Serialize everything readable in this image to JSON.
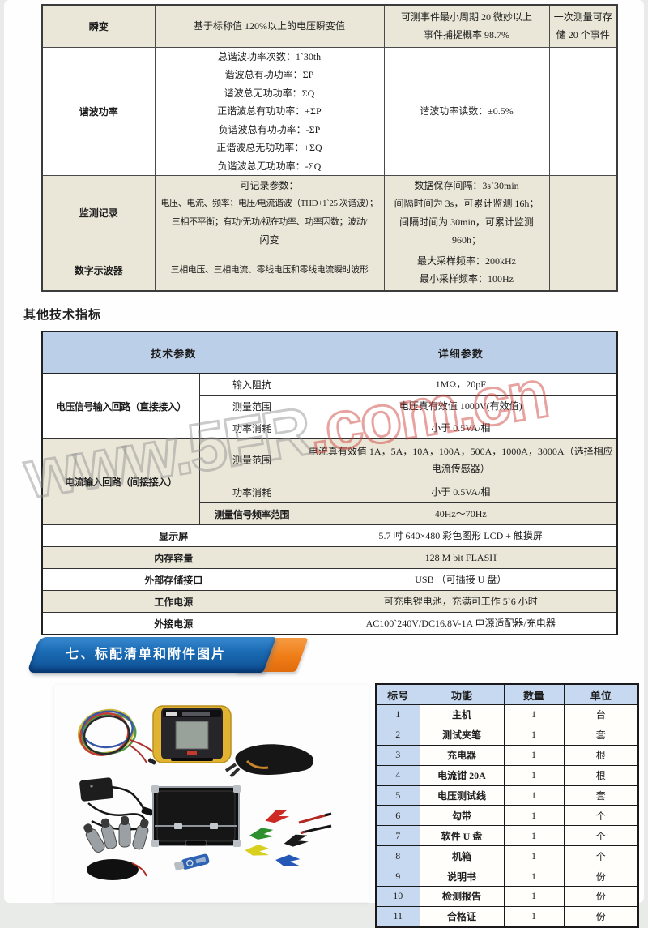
{
  "colors": {
    "beige": "#ebe7d8",
    "header_blue": "#bccfe8",
    "packing_blue": "#c6d9f0",
    "banner_blue": "#0d4e92",
    "banner_orange": "#ef7d17"
  },
  "watermark": {
    "gray_text": "www.5FR",
    "red_text": ".com.cn"
  },
  "spec_table": {
    "rows": [
      {
        "name": "瞬变",
        "desc": [
          "基于标称值 120%以上的电压瞬变值"
        ],
        "accuracy": [
          "可测事件最小周期 20 微妙以上",
          "事件捕捉概率 98.7%"
        ],
        "note": [
          "一次测量可存",
          "储 20 个事件"
        ],
        "shade": true
      },
      {
        "name": "谐波功率",
        "desc": [
          "总谐波功率次数：1`30th",
          "谐波总有功功率：ΣP",
          "谐波总无功功率：ΣQ",
          "正谐波总有功功率：+ΣP",
          "负谐波总有功功率：-ΣP",
          "正谐波总无功功率：+ΣQ",
          "负谐波总无功功率：-ΣQ"
        ],
        "accuracy": [
          "谐波功率读数：±0.5%"
        ],
        "note": [],
        "shade": false
      },
      {
        "name": "监测记录",
        "desc": [
          "可记录参数：",
          "电压、电流、频率；电压/电流谐波（THD+1`25 次谐波）；",
          "三相不平衡；有功/无功/视在功率、功率因数；波动/",
          "闪变"
        ],
        "accuracy": [
          "数据保存间隔：3s`30min",
          "间隔时间为 3s，可累计监测 16h；",
          "间隔时间为 30min，可累计监测",
          "960h；"
        ],
        "note": [],
        "shade": true
      },
      {
        "name": "数字示波器",
        "desc": [
          "三相电压、三相电流、零线电压和零线电流瞬时波形"
        ],
        "accuracy": [
          "最大采样频率：200kHz",
          "最小采样频率：100Hz"
        ],
        "note": [],
        "shade": true
      }
    ]
  },
  "other_specs": {
    "heading": "其他技术指标",
    "headers": [
      "技术参数",
      "详细参数"
    ],
    "groups": [
      {
        "label": "电压信号输入回路（直接接入）",
        "shade": false,
        "rows": [
          {
            "param": "输入阻抗",
            "value": "1MΩ，20pF"
          },
          {
            "param": "测量范围",
            "value": "电压真有效值  1000V(有效值)"
          },
          {
            "param": "功率消耗",
            "value": "小于 0.5VA/相"
          }
        ]
      },
      {
        "label": "电流输入回路（间接接入）",
        "shade": true,
        "rows": [
          {
            "param": "测量范围",
            "value": "电流真有效值  1A，5A，10A，100A，500A，1000A，3000A（选择相应电流传感器）"
          },
          {
            "param": "功率消耗",
            "value": "小于 0.5VA/相"
          },
          {
            "param": "测量信号频率范围",
            "value": "40Hz～70Hz",
            "bold": true
          }
        ]
      }
    ],
    "rows": [
      {
        "label": "显示屏",
        "value": "5.7 吋 640×480 彩色图形 LCD + 触摸屏",
        "shade": false
      },
      {
        "label": "内存容量",
        "value": "128 M bit FLASH",
        "shade": true
      },
      {
        "label": "外部存储接口",
        "value": "USB （可插接 U 盘）",
        "shade": false
      },
      {
        "label": "工作电源",
        "value": "可充电锂电池，充满可工作 5`6 小时",
        "shade": true
      },
      {
        "label": "外接电源",
        "value": "AC100`240V/DC16.8V-1A 电源适配器/充电器",
        "shade": false
      }
    ]
  },
  "banner": {
    "title": "七、标配清单和附件图片"
  },
  "packing_list": {
    "headers": [
      "标号",
      "功能",
      "数量",
      "单位"
    ],
    "rows": [
      {
        "no": "1",
        "item": "主机",
        "qty": "1",
        "unit": "台"
      },
      {
        "no": "2",
        "item": "测试夹笔",
        "qty": "1",
        "unit": "套"
      },
      {
        "no": "3",
        "item": "充电器",
        "qty": "1",
        "unit": "根"
      },
      {
        "no": "4",
        "item": "电流钳 20A",
        "qty": "1",
        "unit": "根"
      },
      {
        "no": "5",
        "item": "电压测试线",
        "qty": "1",
        "unit": "套"
      },
      {
        "no": "6",
        "item": "勾带",
        "qty": "1",
        "unit": "个"
      },
      {
        "no": "7",
        "item": "软件 U 盘",
        "qty": "1",
        "unit": "个"
      },
      {
        "no": "8",
        "item": "机箱",
        "qty": "1",
        "unit": "个"
      },
      {
        "no": "9",
        "item": "说明书",
        "qty": "1",
        "unit": "份"
      },
      {
        "no": "10",
        "item": "检测报告",
        "qty": "1",
        "unit": "份"
      },
      {
        "no": "11",
        "item": "合格证",
        "qty": "1",
        "unit": "份"
      }
    ]
  }
}
